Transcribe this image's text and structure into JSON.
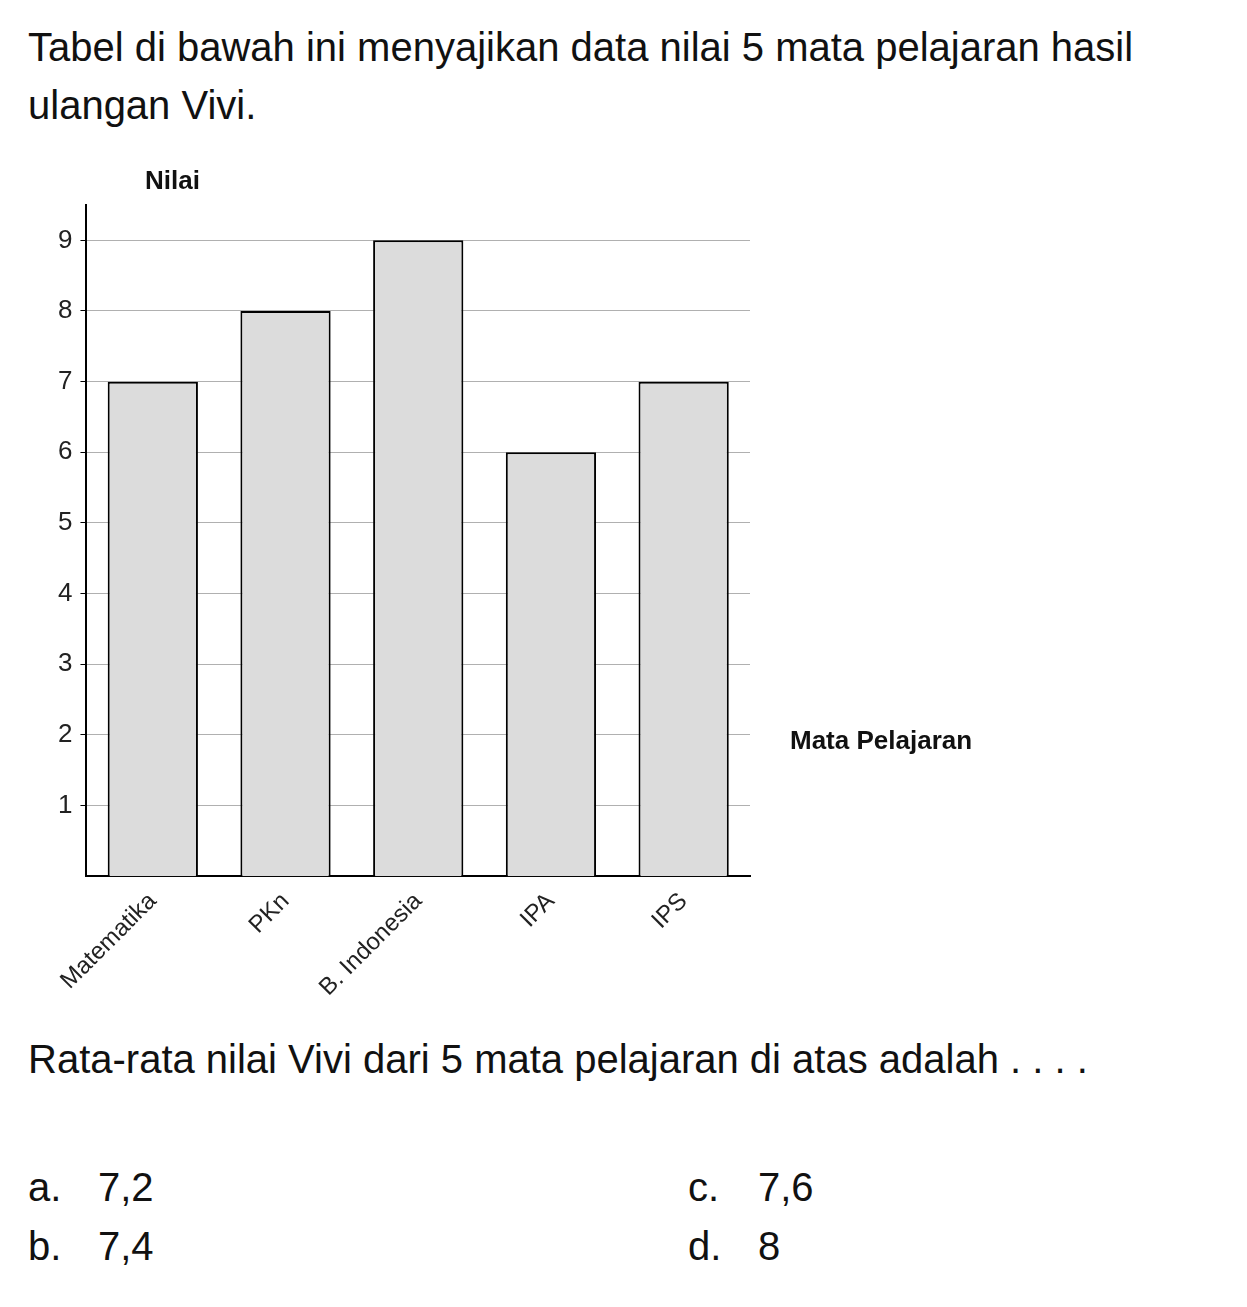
{
  "question": "Tabel di bawah ini menyajikan data nilai 5 mata pelajaran hasil ulangan Vivi.",
  "chart_data": {
    "type": "bar",
    "y_label": "Nilai",
    "x_label": "Mata Pelajaran",
    "categories": [
      "Matematika",
      "PKn",
      "B. Indonesia",
      "IPA",
      "IPS"
    ],
    "values": [
      7,
      8,
      9,
      6,
      7
    ],
    "color": "#dcdcdc",
    "ylim": [
      0,
      9.5
    ],
    "yticks": [
      1,
      2,
      3,
      4,
      5,
      6,
      7,
      8,
      9
    ],
    "grid": true
  },
  "prompt": "Rata-rata nilai Vivi dari 5 mata pelajaran di atas adalah . . . .",
  "options": [
    {
      "label": "a.",
      "text": "7,2"
    },
    {
      "label": "c.",
      "text": "7,6"
    },
    {
      "label": "b.",
      "text": "7,4"
    },
    {
      "label": "d.",
      "text": "8"
    }
  ]
}
